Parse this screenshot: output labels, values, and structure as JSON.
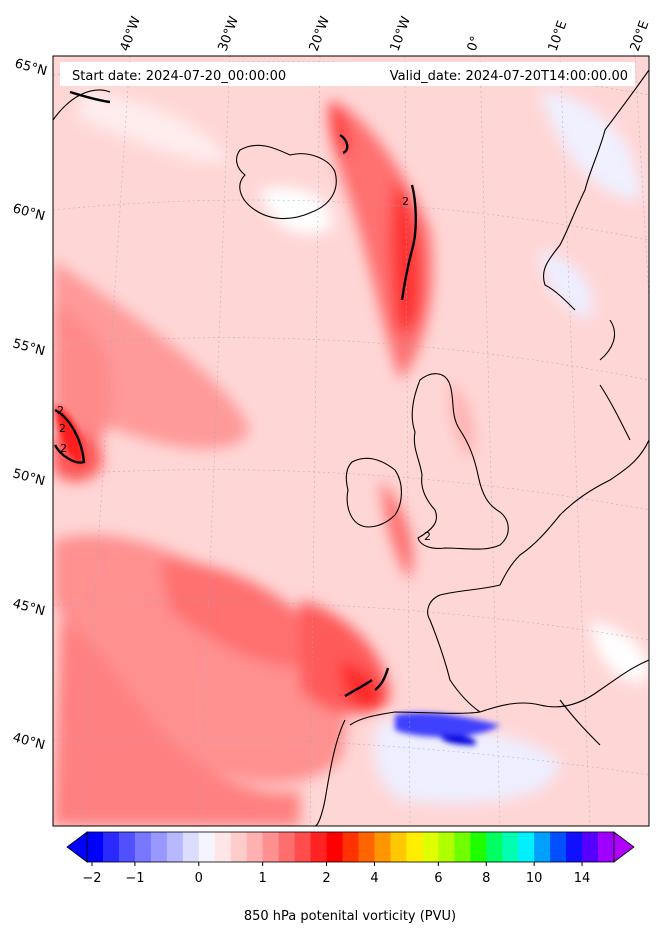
{
  "header": {
    "start_date": "Start date: 2024-07-20_00:00:00",
    "valid_date": "Valid_date: 2024-07-20T14:00:00.00"
  },
  "lon_labels": [
    "40°W",
    "30°W",
    "20°W",
    "10°W",
    "0°",
    "10°E",
    "20°E"
  ],
  "lat_labels": [
    "65°N",
    "60°N",
    "55°N",
    "50°N",
    "45°N",
    "40°N"
  ],
  "contour_labels": [
    "2",
    "2",
    "2",
    "2",
    "2"
  ],
  "colorbar": {
    "title": "850 hPa potenital vorticity (PVU)",
    "ticks": [
      "−2",
      "−1",
      "0",
      "1",
      "2",
      "4",
      "6",
      "8",
      "10",
      "14"
    ],
    "colors": [
      "#0000ff",
      "#2a2aff",
      "#5050ff",
      "#7777ff",
      "#9898ff",
      "#b8b8ff",
      "#dcdcff",
      "#f5f5ff",
      "#ffe6e6",
      "#ffcccc",
      "#ffb0b0",
      "#ff9090",
      "#ff6e6e",
      "#ff4c4c",
      "#ff2222",
      "#ff0000",
      "#ff3200",
      "#ff6400",
      "#ff9600",
      "#ffc800",
      "#ffee00",
      "#e0ff00",
      "#b0ff00",
      "#70ff00",
      "#20ff00",
      "#00ff60",
      "#00ffb0",
      "#00f0ff",
      "#00a0ff",
      "#0050ff",
      "#1010ff",
      "#5500ff",
      "#a000ff"
    ],
    "under_color": "#0000ff",
    "over_color": "#b000ff"
  }
}
